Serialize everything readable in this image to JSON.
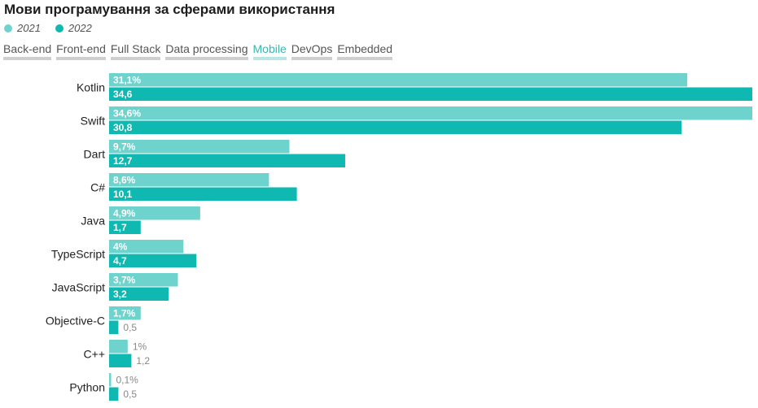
{
  "title": "Мови програмування за сферами використання",
  "legend": [
    {
      "label": "2021",
      "color": "#6fd3cd"
    },
    {
      "label": "2022",
      "color": "#0fb9b1"
    }
  ],
  "tabs": [
    {
      "label": "Back-end",
      "active": false
    },
    {
      "label": "Front-end",
      "active": false
    },
    {
      "label": "Full Stack",
      "active": false
    },
    {
      "label": "Data processing",
      "active": false
    },
    {
      "label": "Mobile",
      "active": true
    },
    {
      "label": "DevOps",
      "active": false
    },
    {
      "label": "Embedded",
      "active": false
    }
  ],
  "chart_data": {
    "type": "bar",
    "orientation": "horizontal",
    "categories": [
      "Kotlin",
      "Swift",
      "Dart",
      "C#",
      "Java",
      "TypeScript",
      "JavaScript",
      "Objective-C",
      "C++",
      "Python"
    ],
    "series": [
      {
        "name": "2021",
        "color": "#6fd3cd",
        "values": [
          31.1,
          34.6,
          9.7,
          8.6,
          4.9,
          4,
          3.7,
          1.7,
          1,
          0.1
        ],
        "labels": [
          "31,1%",
          "34,6%",
          "9,7%",
          "8,6%",
          "4,9%",
          "4%",
          "3,7%",
          "1,7%",
          "1%",
          "0,1%"
        ]
      },
      {
        "name": "2022",
        "color": "#0fb9b1",
        "values": [
          34.6,
          30.8,
          12.7,
          10.1,
          1.7,
          4.7,
          3.2,
          0.5,
          1.2,
          0.5
        ],
        "labels": [
          "34,6",
          "30,8",
          "12,7",
          "10,1",
          "1,7",
          "4,7",
          "3,2",
          "0,5",
          "1,2",
          "0,5"
        ]
      }
    ],
    "xlim": [
      0,
      34.6
    ],
    "grid": false,
    "legend_position": "top-left"
  }
}
